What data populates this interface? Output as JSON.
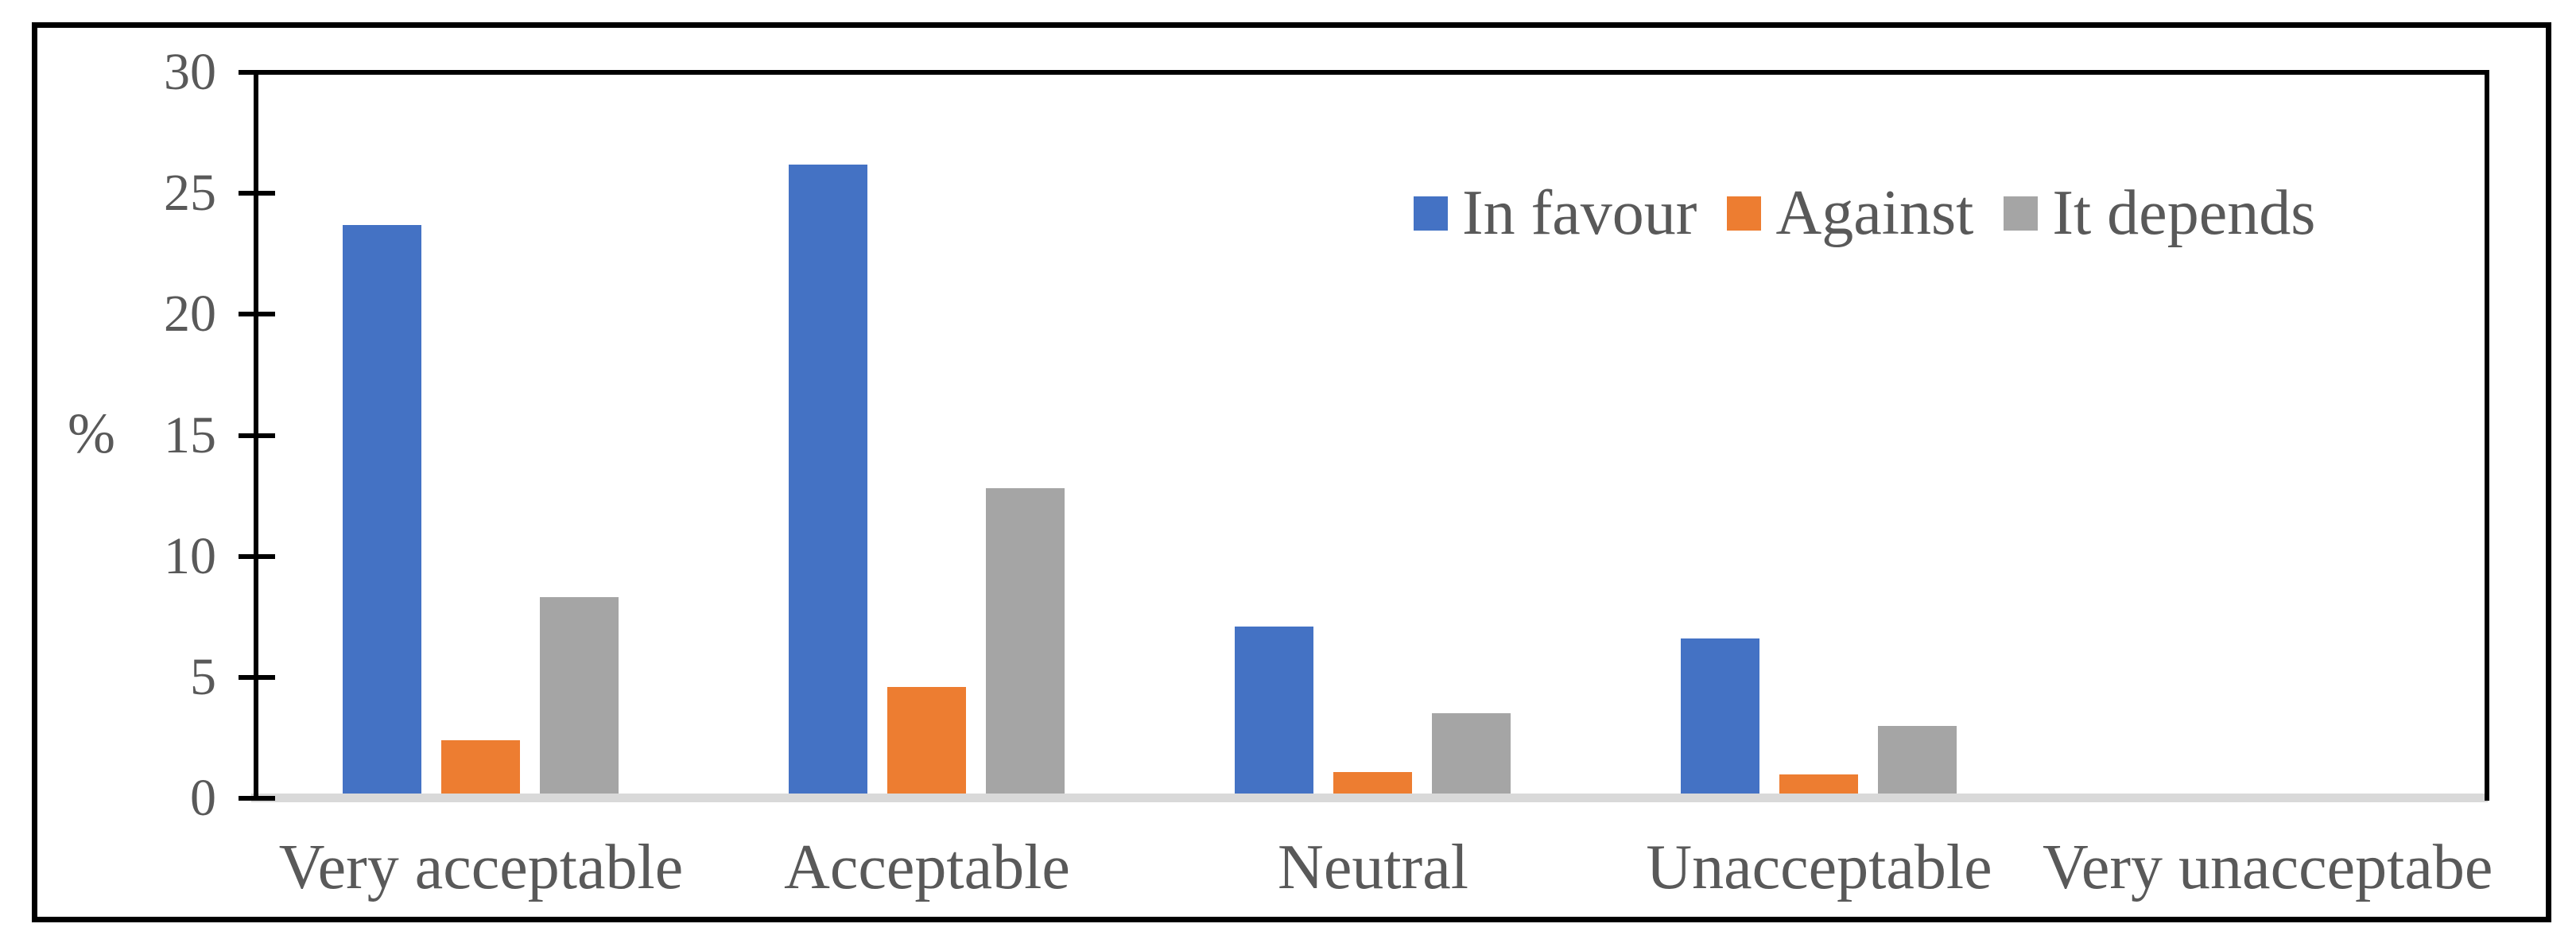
{
  "chart_data": {
    "type": "bar",
    "title": "",
    "categories": [
      "Very acceptable",
      "Acceptable",
      "Neutral",
      "Unacceptable",
      "Very unacceptabe"
    ],
    "series": [
      {
        "name": "In favour",
        "color": "#4472C4",
        "values": [
          23.7,
          26.2,
          7.1,
          6.6,
          0
        ]
      },
      {
        "name": "Against",
        "color": "#ED7D31",
        "values": [
          2.4,
          4.6,
          1.1,
          1.0,
          0
        ]
      },
      {
        "name": "It depends",
        "color": "#A5A5A5",
        "values": [
          8.3,
          12.8,
          3.5,
          3.0,
          0
        ]
      }
    ],
    "xlabel": "",
    "ylabel": "%",
    "yticks": [
      0,
      5,
      10,
      15,
      20,
      25,
      30
    ],
    "ylim": [
      0,
      30
    ],
    "grid": false,
    "legend_position": "top-right-inside"
  },
  "colors": {
    "axis_text": "#595959",
    "axis_line": "#000000",
    "baseline_strip": "#D9D9D9",
    "figure_border": "#000000",
    "background": "#FFFFFF"
  }
}
